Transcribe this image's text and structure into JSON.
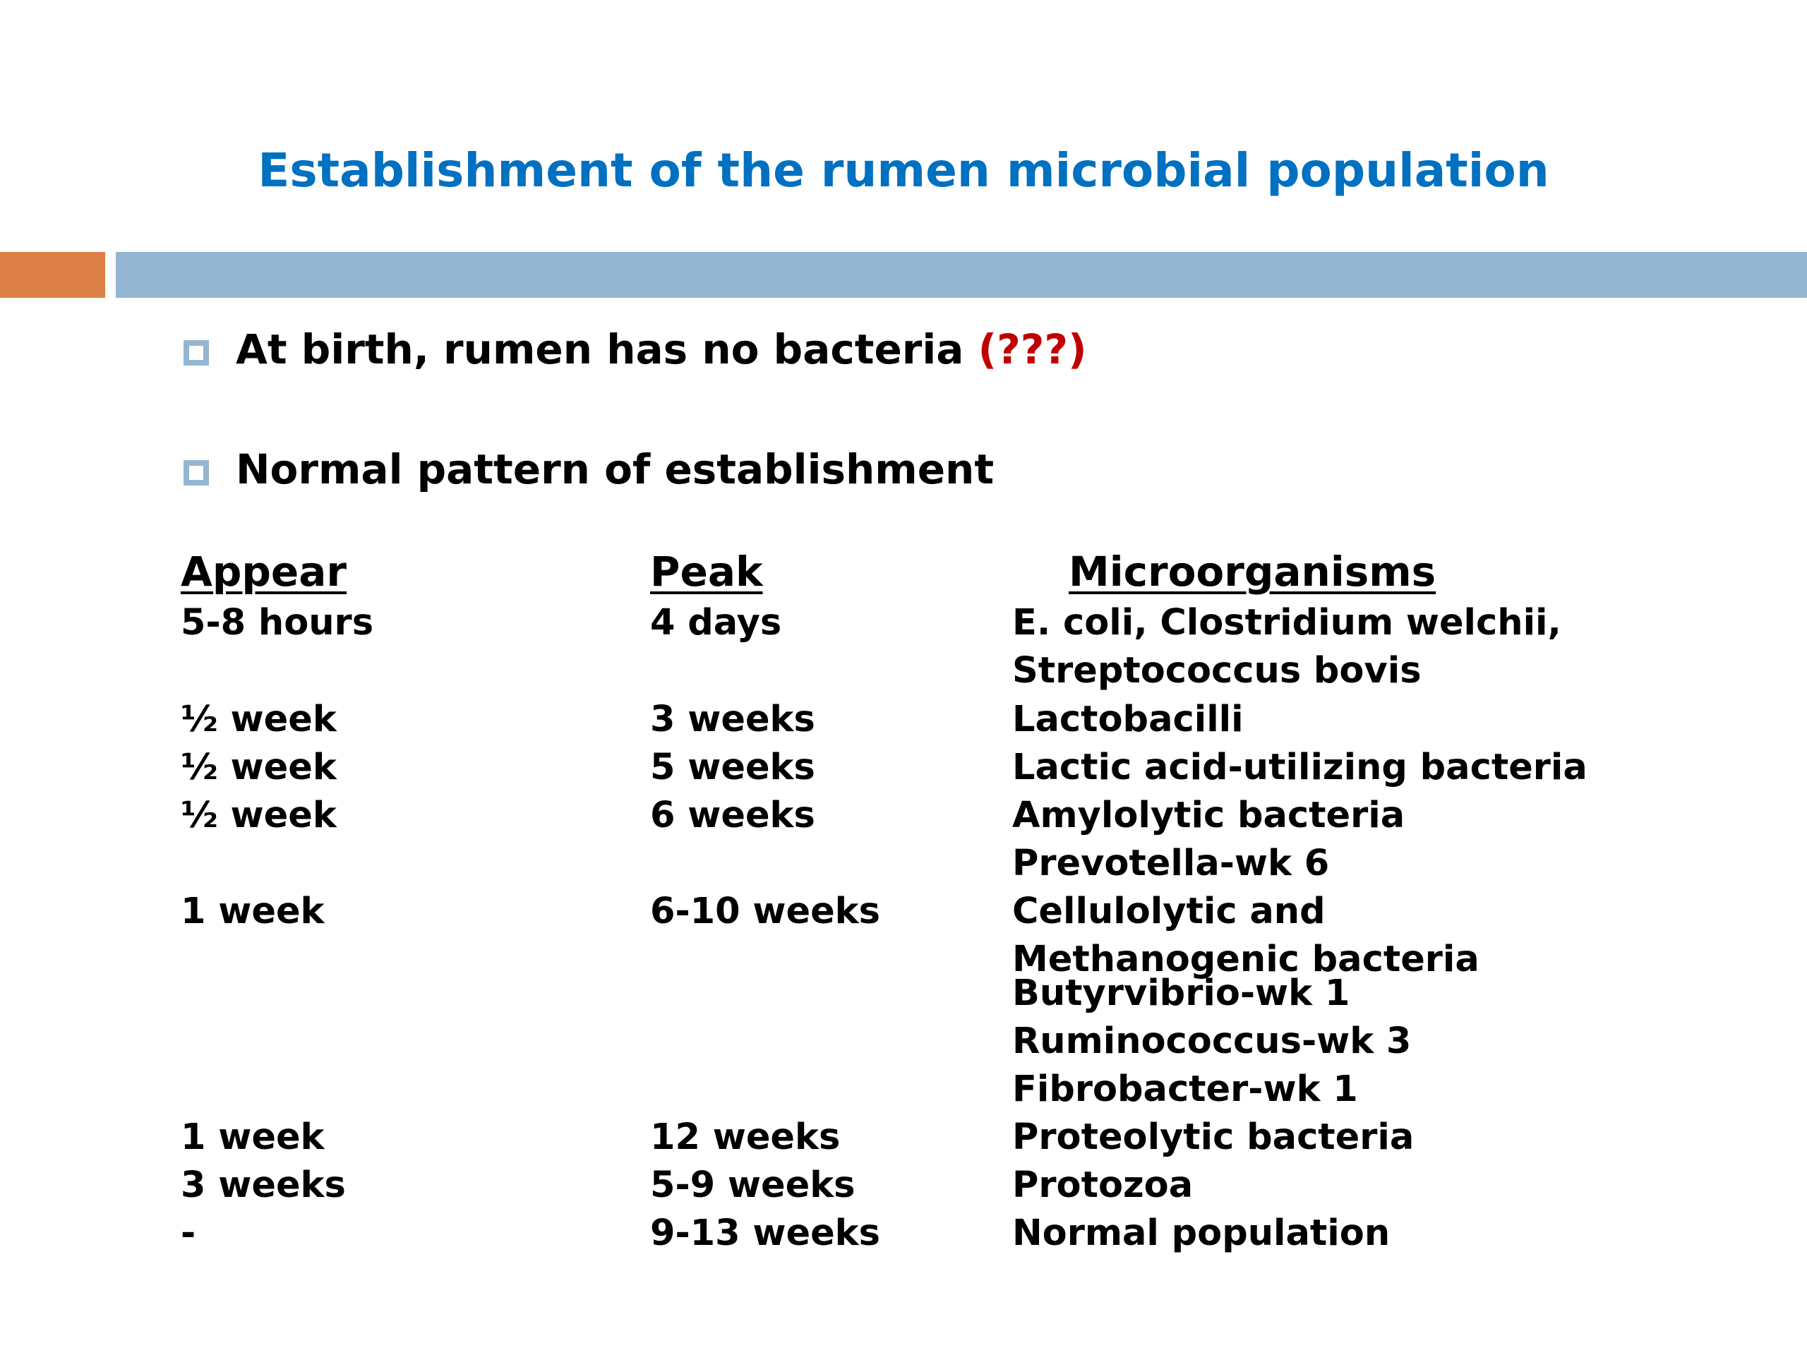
{
  "slide": {
    "title": "Establishment of the rumen microbial population",
    "accent_colors": {
      "title": "#0070c0",
      "orange_bar": "#dd8047",
      "blue_bar": "#94b6d2",
      "highlight": "#c00000"
    }
  },
  "bullets": [
    {
      "text": "At birth, rumen has no bacteria ",
      "highlight": "(???)",
      "icon": "square-bullet-icon"
    },
    {
      "text": "Normal pattern of establishment",
      "icon": "square-bullet-icon"
    }
  ],
  "table": {
    "headers": [
      "Appear",
      "Peak",
      "Microorganisms"
    ],
    "lines": [
      [
        "5-8 hours",
        "4 days",
        "E. coli, Clostridium welchii,"
      ],
      [
        "",
        "",
        "Streptococcus bovis"
      ],
      [
        "½ week",
        "3 weeks",
        "Lactobacilli"
      ],
      [
        "½ week",
        "5 weeks",
        "Lactic acid-utilizing bacteria"
      ],
      [
        "½ week",
        "6 weeks",
        "Amylolytic bacteria"
      ],
      [
        "",
        "",
        "Prevotella-wk 6"
      ],
      [
        "1 week",
        "6-10 weeks",
        "Cellulolytic and"
      ],
      [
        "",
        "",
        "Methanogenic bacteria"
      ],
      [
        "",
        "",
        "Butyrvibrio-wk 1"
      ],
      [
        "",
        "",
        "Ruminococcus-wk 3"
      ],
      [
        "",
        "",
        "Fibrobacter-wk 1"
      ],
      [
        "1 week",
        "12 weeks",
        "Proteolytic bacteria"
      ],
      [
        "3 weeks",
        "5-9 weeks",
        "Protozoa"
      ],
      [
        "-",
        "9-13 weeks",
        "Normal population"
      ]
    ]
  }
}
